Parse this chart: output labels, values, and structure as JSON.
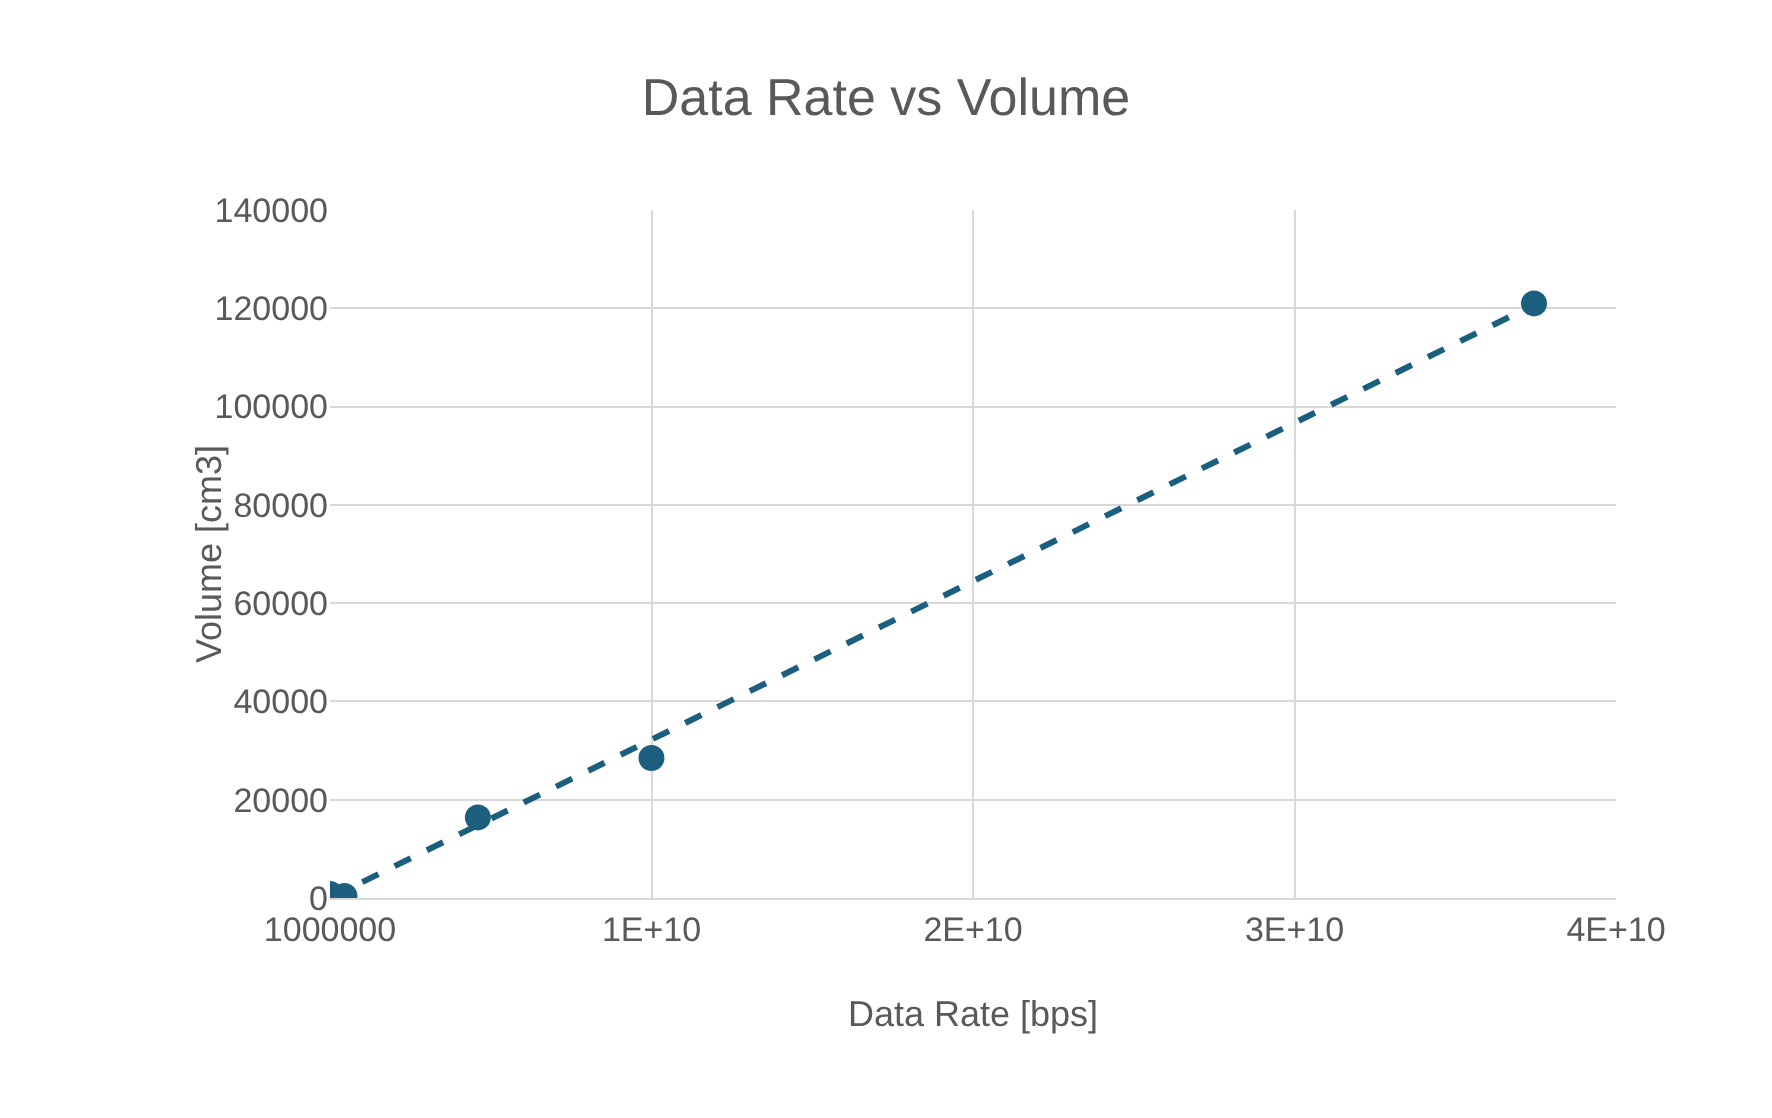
{
  "chart_data": {
    "type": "scatter",
    "title": "Data Rate vs Volume",
    "xlabel": "Data Rate [bps]",
    "ylabel": "Volume [cm3]",
    "xlim": [
      1000000,
      40001000000
    ],
    "xticks": [
      1000000,
      {
        "value": 10001000000,
        "label": "1E+10"
      },
      {
        "value": 20001000000,
        "label": "2E+10"
      },
      {
        "value": 30001000000,
        "label": "3E+10"
      },
      {
        "value": 40001000000,
        "label": "4E+10"
      }
    ],
    "ylim": [
      0,
      140000
    ],
    "yticks": [
      0,
      20000,
      40000,
      60000,
      80000,
      100000,
      120000,
      140000
    ],
    "grid": true,
    "series": [
      {
        "color": "#1b5e7e",
        "marker": "circle",
        "x": [
          1000000,
          450000000,
          4600000000,
          10000000000,
          37450000000
        ],
        "values": [
          800,
          400,
          16400,
          28500,
          121000
        ]
      },
      {
        "type": "line",
        "color": "#1b5e7e",
        "line_style": "dashed",
        "x": [
          1000000,
          37450000000
        ],
        "values": [
          0,
          120700
        ]
      }
    ]
  }
}
